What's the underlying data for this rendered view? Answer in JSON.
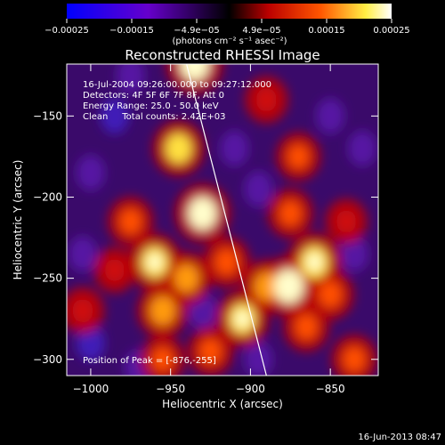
{
  "chart_data": {
    "type": "heatmap",
    "title": "Reconstructed RHESSI Image",
    "xlabel": "Heliocentric X (arcsec)",
    "ylabel": "Heliocentric Y (arcsec)",
    "xlim": [
      -1015,
      -820
    ],
    "ylim": [
      -310,
      -118
    ],
    "x_ticks": [
      -1000,
      -950,
      -900,
      -850
    ],
    "x_tick_labels": [
      "−1000",
      "−950",
      "−900",
      "−850"
    ],
    "y_ticks": [
      -150,
      -200,
      -250,
      -300
    ],
    "y_tick_labels": [
      "−150",
      "−200",
      "−250",
      "−300"
    ],
    "colorbar": {
      "range": [
        -0.00025,
        0.00025
      ],
      "ticks": [
        -0.00025,
        -0.00015,
        -4.9e-05,
        4.9e-05,
        0.00015,
        0.00025
      ],
      "tick_labels": [
        "−0.00025",
        "−0.00015",
        "−4.9e−05",
        "4.9e−05",
        "0.00015",
        "0.00025"
      ],
      "units": "(photons cm⁻² s⁻¹ asec⁻²)",
      "colors": [
        "#0000ff",
        "#6600dd",
        "#000000",
        "#cc0000",
        "#ff6600",
        "#ffff66",
        "#ffffff"
      ]
    },
    "annotations": [
      "16-Jul-2004 09:26:00.000 to 09:27:12.000",
      "Detectors: 4F 5F 6F 7F 8F, Att 0",
      "Energy Range: 25.0 - 50.0 keV",
      "Clean     Total counts: 2.42E+03"
    ],
    "peak_label": "Position of Peak = [-876,-255]",
    "peak_position": [
      -876,
      -255
    ],
    "limb_line": [
      [
        -940,
        -118
      ],
      [
        -890,
        -310
      ]
    ],
    "blobs": [
      {
        "x": -935,
        "y": -118,
        "v": 1.0
      },
      {
        "x": -945,
        "y": -170,
        "v": 0.8
      },
      {
        "x": -930,
        "y": -210,
        "v": 0.95
      },
      {
        "x": -940,
        "y": -250,
        "v": 0.7
      },
      {
        "x": -960,
        "y": -240,
        "v": 0.85
      },
      {
        "x": -955,
        "y": -270,
        "v": 0.75
      },
      {
        "x": -975,
        "y": -215,
        "v": 0.55
      },
      {
        "x": -915,
        "y": -240,
        "v": 0.6
      },
      {
        "x": -905,
        "y": -275,
        "v": 0.85
      },
      {
        "x": -890,
        "y": -255,
        "v": 0.7
      },
      {
        "x": -876,
        "y": -255,
        "v": 1.0
      },
      {
        "x": -860,
        "y": -240,
        "v": 0.9
      },
      {
        "x": -865,
        "y": -280,
        "v": 0.55
      },
      {
        "x": -850,
        "y": -260,
        "v": 0.6
      },
      {
        "x": -875,
        "y": -210,
        "v": 0.55
      },
      {
        "x": -870,
        "y": -175,
        "v": 0.5
      },
      {
        "x": -890,
        "y": -140,
        "v": 0.45
      },
      {
        "x": -955,
        "y": -300,
        "v": 0.5
      },
      {
        "x": -925,
        "y": -295,
        "v": 0.55
      },
      {
        "x": -1005,
        "y": -270,
        "v": 0.45
      },
      {
        "x": -985,
        "y": -245,
        "v": 0.4
      },
      {
        "x": -835,
        "y": -300,
        "v": 0.55
      },
      {
        "x": -840,
        "y": -215,
        "v": 0.4
      }
    ],
    "negative_blobs": [
      {
        "x": -985,
        "y": -150,
        "v": -0.6
      },
      {
        "x": -1000,
        "y": -185,
        "v": -0.5
      },
      {
        "x": -975,
        "y": -125,
        "v": -0.45
      },
      {
        "x": -1005,
        "y": -235,
        "v": -0.4
      },
      {
        "x": -1000,
        "y": -290,
        "v": -0.55
      },
      {
        "x": -970,
        "y": -305,
        "v": -0.5
      },
      {
        "x": -910,
        "y": -170,
        "v": -0.45
      },
      {
        "x": -895,
        "y": -195,
        "v": -0.4
      },
      {
        "x": -850,
        "y": -150,
        "v": -0.45
      },
      {
        "x": -830,
        "y": -170,
        "v": -0.5
      },
      {
        "x": -835,
        "y": -235,
        "v": -0.4
      },
      {
        "x": -895,
        "y": -300,
        "v": -0.4
      },
      {
        "x": -930,
        "y": -270,
        "v": -0.35
      }
    ]
  },
  "footer": {
    "timestamp": "16-Jun-2013 08:47"
  }
}
